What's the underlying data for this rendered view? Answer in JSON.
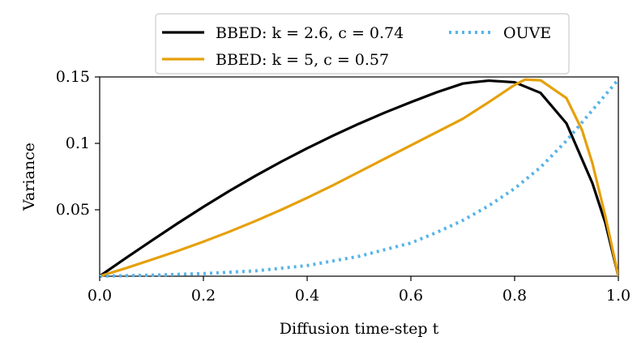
{
  "chart_data": {
    "type": "line",
    "title": "",
    "xlabel": "Diffusion time-step t",
    "ylabel": "Variance",
    "xlim": [
      0,
      1
    ],
    "ylim": [
      0,
      0.15
    ],
    "xticks": [
      0.0,
      0.2,
      0.4,
      0.6,
      0.8,
      1.0
    ],
    "xtick_labels": [
      "0.0",
      "0.2",
      "0.4",
      "0.6",
      "0.8",
      "1.0"
    ],
    "yticks": [
      0.05,
      0.1,
      0.15
    ],
    "ytick_labels": [
      "0.05",
      "0.1",
      "0.15"
    ],
    "grid": false,
    "legend_position": "top-center, above plot",
    "series": [
      {
        "name": "BBED: k = 2.6, c = 0.74",
        "color": "#000000",
        "style": "solid",
        "x": [
          0,
          0.05,
          0.1,
          0.15,
          0.2,
          0.25,
          0.3,
          0.35,
          0.4,
          0.45,
          0.5,
          0.55,
          0.6,
          0.65,
          0.7,
          0.72,
          0.75,
          0.8,
          0.85,
          0.9,
          0.95,
          0.975,
          1.0
        ],
        "y": [
          0,
          0.0135,
          0.0267,
          0.0397,
          0.0522,
          0.0642,
          0.0755,
          0.0862,
          0.0963,
          0.1058,
          0.1148,
          0.1232,
          0.131,
          0.1385,
          0.145,
          0.146,
          0.1472,
          0.146,
          0.138,
          0.115,
          0.07,
          0.04,
          0.0
        ]
      },
      {
        "name": "BBED: k = 5, c = 0.57",
        "color": "#E6A00A",
        "style": "solid",
        "x": [
          0,
          0.05,
          0.1,
          0.15,
          0.2,
          0.25,
          0.3,
          0.35,
          0.4,
          0.45,
          0.5,
          0.55,
          0.6,
          0.65,
          0.7,
          0.75,
          0.8,
          0.82,
          0.85,
          0.9,
          0.93,
          0.95,
          0.975,
          1.0
        ],
        "y": [
          0,
          0.006,
          0.0124,
          0.019,
          0.026,
          0.0335,
          0.0415,
          0.05,
          0.059,
          0.0685,
          0.0785,
          0.0885,
          0.0985,
          0.1085,
          0.1185,
          0.131,
          0.144,
          0.148,
          0.1475,
          0.134,
          0.11,
          0.085,
          0.045,
          0.0
        ]
      },
      {
        "name": "OUVE",
        "color": "#56B4E9",
        "style": "dotted",
        "x": [
          0,
          0.1,
          0.2,
          0.3,
          0.4,
          0.5,
          0.6,
          0.65,
          0.7,
          0.75,
          0.8,
          0.85,
          0.9,
          0.95,
          1.0
        ],
        "y": [
          0,
          0.0008,
          0.002,
          0.004,
          0.008,
          0.015,
          0.025,
          0.033,
          0.042,
          0.053,
          0.066,
          0.082,
          0.102,
          0.125,
          0.148
        ]
      }
    ],
    "legend": {
      "entries": [
        "BBED: k = 2.6, c = 0.74",
        "OUVE",
        "BBED: k = 5, c = 0.57"
      ]
    }
  }
}
